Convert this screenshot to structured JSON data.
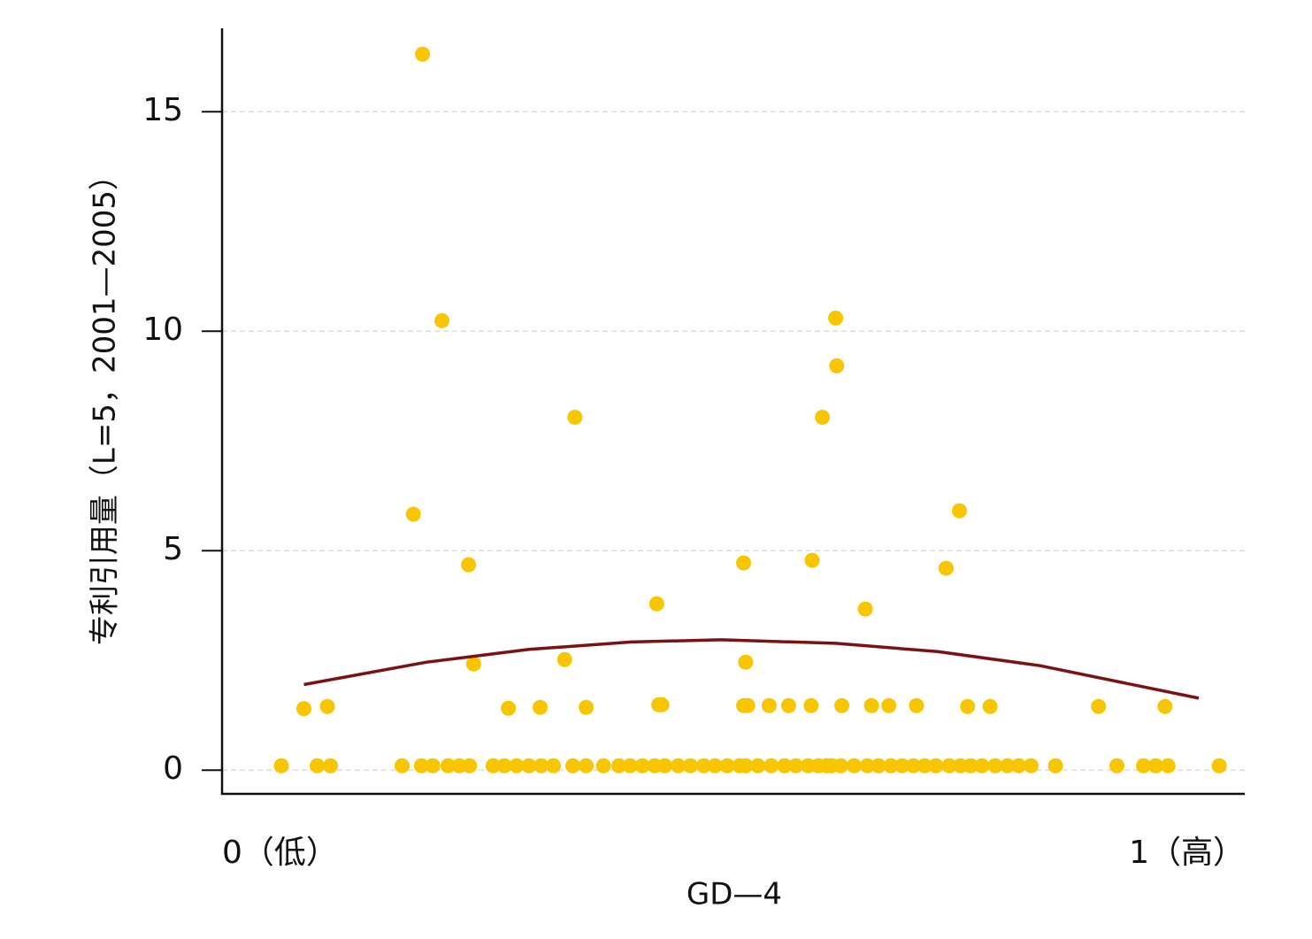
{
  "chart_data": {
    "type": "scatter",
    "xlabel": "GD—4",
    "ylabel": "专利引用量（L=5，2001—2005）",
    "xlim": [
      0,
      1
    ],
    "xticks": [
      {
        "value": 0,
        "label": "0（低）"
      },
      {
        "value": 1,
        "label": "1（高）"
      }
    ],
    "ylim": [
      -0.54,
      16.9
    ],
    "yticks": [
      0,
      5,
      10,
      15
    ],
    "grid": true,
    "series": [
      {
        "type": "scatter",
        "color": "#f7c600",
        "x": [
          0.058,
          0.093,
          0.106,
          0.176,
          0.195,
          0.206,
          0.221,
          0.232,
          0.242,
          0.265,
          0.276,
          0.288,
          0.3,
          0.312,
          0.324,
          0.343,
          0.356,
          0.373,
          0.388,
          0.399,
          0.411,
          0.423,
          0.433,
          0.446,
          0.458,
          0.471,
          0.482,
          0.494,
          0.506,
          0.512,
          0.524,
          0.537,
          0.55,
          0.561,
          0.573,
          0.583,
          0.591,
          0.596,
          0.605,
          0.618,
          0.631,
          0.642,
          0.654,
          0.665,
          0.676,
          0.687,
          0.698,
          0.711,
          0.722,
          0.732,
          0.743,
          0.756,
          0.768,
          0.779,
          0.791,
          0.815,
          0.875,
          0.901,
          0.913,
          0.925,
          0.975,
          0.08,
          0.103,
          0.28,
          0.311,
          0.356,
          0.427,
          0.43,
          0.51,
          0.514,
          0.535,
          0.554,
          0.576,
          0.606,
          0.635,
          0.652,
          0.679,
          0.729,
          0.751,
          0.857,
          0.922,
          0.246,
          0.335,
          0.512,
          0.425,
          0.629,
          0.241,
          0.51,
          0.577,
          0.708,
          0.187,
          0.721,
          0.345,
          0.587,
          0.601,
          0.6,
          0.215,
          0.196
        ],
        "values": [
          0.1,
          0.1,
          0.1,
          0.1,
          0.1,
          0.1,
          0.1,
          0.1,
          0.1,
          0.1,
          0.1,
          0.1,
          0.1,
          0.1,
          0.1,
          0.1,
          0.1,
          0.1,
          0.1,
          0.1,
          0.1,
          0.1,
          0.1,
          0.1,
          0.1,
          0.1,
          0.1,
          0.1,
          0.1,
          0.1,
          0.1,
          0.1,
          0.1,
          0.1,
          0.1,
          0.1,
          0.1,
          0.1,
          0.1,
          0.1,
          0.1,
          0.1,
          0.1,
          0.1,
          0.1,
          0.1,
          0.1,
          0.1,
          0.1,
          0.1,
          0.1,
          0.1,
          0.1,
          0.1,
          0.1,
          0.1,
          0.1,
          0.1,
          0.1,
          0.1,
          0.1,
          1.4,
          1.45,
          1.41,
          1.43,
          1.43,
          1.49,
          1.49,
          1.47,
          1.47,
          1.47,
          1.47,
          1.47,
          1.47,
          1.47,
          1.47,
          1.47,
          1.45,
          1.45,
          1.45,
          1.45,
          2.42,
          2.52,
          2.46,
          3.79,
          3.67,
          4.68,
          4.72,
          4.78,
          4.6,
          5.83,
          5.91,
          8.04,
          8.04,
          9.21,
          10.3,
          10.24,
          16.31
        ]
      },
      {
        "type": "line",
        "color": "#7a1212",
        "x": [
          0.08,
          0.2,
          0.3,
          0.4,
          0.488,
          0.6,
          0.7,
          0.8,
          0.955
        ],
        "values": [
          1.95,
          2.46,
          2.75,
          2.92,
          2.97,
          2.89,
          2.7,
          2.38,
          1.64
        ]
      }
    ]
  }
}
